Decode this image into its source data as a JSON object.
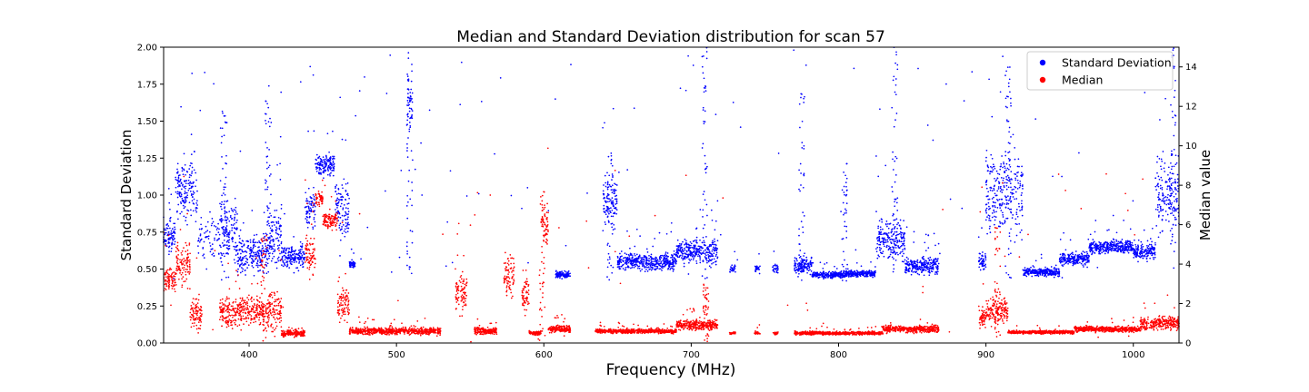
{
  "chart_data": {
    "type": "scatter",
    "title": "Median and Standard Deviation distribution for scan 57",
    "xlabel": "Frequency (MHz)",
    "ylabel_left": "Standard Deviation",
    "ylabel_right": "Median value",
    "xlim": [
      342,
      1031
    ],
    "ylim_left": [
      0,
      2.0
    ],
    "ylim_right": [
      0,
      15
    ],
    "x_ticks": [
      400,
      500,
      600,
      700,
      800,
      900,
      1000
    ],
    "y_left_ticks": [
      "0.00",
      "0.25",
      "0.50",
      "0.75",
      "1.00",
      "1.25",
      "1.50",
      "1.75",
      "2.00"
    ],
    "y_right_ticks": [
      "0",
      "2",
      "4",
      "6",
      "8",
      "10",
      "12",
      "14"
    ],
    "legend_position": "top-right",
    "grid": false,
    "series": [
      {
        "name": "Standard Deviation",
        "axis": "left",
        "color": "#0000ff",
        "segments": [
          {
            "x0": 342,
            "x1": 350,
            "base": 0.72,
            "spread": 0.15,
            "density": 1.0
          },
          {
            "x0": 350,
            "x1": 365,
            "base": 1.05,
            "spread": 0.3,
            "density": 1.0
          },
          {
            "x0": 365,
            "x1": 380,
            "base": 0.7,
            "spread": 0.25,
            "density": 0.4
          },
          {
            "x0": 380,
            "x1": 392,
            "base": 0.75,
            "spread": 0.35,
            "density": 1.0
          },
          {
            "x0": 392,
            "x1": 412,
            "base": 0.6,
            "spread": 0.18,
            "density": 1.0
          },
          {
            "x0": 412,
            "x1": 422,
            "base": 0.7,
            "spread": 0.3,
            "density": 1.0
          },
          {
            "x0": 422,
            "x1": 438,
            "base": 0.58,
            "spread": 0.12,
            "density": 1.0
          },
          {
            "x0": 438,
            "x1": 445,
            "base": 0.9,
            "spread": 0.2,
            "density": 1.0
          },
          {
            "x0": 445,
            "x1": 458,
            "base": 1.2,
            "spread": 0.1,
            "density": 1.0
          },
          {
            "x0": 458,
            "x1": 468,
            "base": 0.9,
            "spread": 0.3,
            "density": 1.0
          },
          {
            "x0": 468,
            "x1": 472,
            "base": 0.53,
            "spread": 0.04,
            "density": 1.0
          },
          {
            "x0": 507,
            "x1": 511,
            "base": 1.6,
            "spread": 0.3,
            "density": 1.0
          },
          {
            "x0": 608,
            "x1": 618,
            "base": 0.46,
            "spread": 0.03,
            "density": 1.0
          },
          {
            "x0": 640,
            "x1": 650,
            "base": 0.95,
            "spread": 0.25,
            "density": 1.0
          },
          {
            "x0": 650,
            "x1": 690,
            "base": 0.55,
            "spread": 0.08,
            "density": 1.0
          },
          {
            "x0": 690,
            "x1": 718,
            "base": 0.62,
            "spread": 0.12,
            "density": 1.0
          },
          {
            "x0": 726,
            "x1": 730,
            "base": 0.5,
            "spread": 0.04,
            "density": 0.6
          },
          {
            "x0": 743,
            "x1": 747,
            "base": 0.5,
            "spread": 0.04,
            "density": 0.6
          },
          {
            "x0": 755,
            "x1": 759,
            "base": 0.5,
            "spread": 0.04,
            "density": 0.6
          },
          {
            "x0": 770,
            "x1": 782,
            "base": 0.52,
            "spread": 0.08,
            "density": 1.0
          },
          {
            "x0": 782,
            "x1": 805,
            "base": 0.46,
            "spread": 0.03,
            "density": 1.0
          },
          {
            "x0": 805,
            "x1": 825,
            "base": 0.47,
            "spread": 0.03,
            "density": 1.0
          },
          {
            "x0": 825,
            "x1": 845,
            "base": 0.7,
            "spread": 0.2,
            "density": 1.0
          },
          {
            "x0": 845,
            "x1": 868,
            "base": 0.52,
            "spread": 0.08,
            "density": 1.0
          },
          {
            "x0": 895,
            "x1": 900,
            "base": 0.55,
            "spread": 0.1,
            "density": 1.0
          },
          {
            "x0": 900,
            "x1": 925,
            "base": 1.0,
            "spread": 0.4,
            "density": 1.0
          },
          {
            "x0": 925,
            "x1": 950,
            "base": 0.48,
            "spread": 0.04,
            "density": 1.0
          },
          {
            "x0": 950,
            "x1": 970,
            "base": 0.57,
            "spread": 0.06,
            "density": 1.0
          },
          {
            "x0": 970,
            "x1": 1000,
            "base": 0.65,
            "spread": 0.06,
            "density": 1.0
          },
          {
            "x0": 1000,
            "x1": 1015,
            "base": 0.62,
            "spread": 0.08,
            "density": 1.0
          },
          {
            "x0": 1015,
            "x1": 1031,
            "base": 1.0,
            "spread": 0.35,
            "density": 1.0
          }
        ],
        "spikes": [
          {
            "x": 383,
            "peak": 1.6
          },
          {
            "x": 413,
            "peak": 1.75
          },
          {
            "x": 509,
            "peak": 2.0
          },
          {
            "x": 645,
            "peak": 1.3
          },
          {
            "x": 709,
            "peak": 2.0
          },
          {
            "x": 775,
            "peak": 1.7
          },
          {
            "x": 804,
            "peak": 1.22
          },
          {
            "x": 838,
            "peak": 2.0
          },
          {
            "x": 915,
            "peak": 2.0
          },
          {
            "x": 1027,
            "peak": 2.0
          }
        ]
      },
      {
        "name": "Median",
        "axis": "right",
        "color": "#ff0000",
        "segments": [
          {
            "x0": 342,
            "x1": 350,
            "base": 3.2,
            "spread": 1.0,
            "density": 1.0
          },
          {
            "x0": 350,
            "x1": 360,
            "base": 4.0,
            "spread": 1.5,
            "density": 1.0
          },
          {
            "x0": 360,
            "x1": 368,
            "base": 1.5,
            "spread": 1.2,
            "density": 1.0
          },
          {
            "x0": 380,
            "x1": 392,
            "base": 1.5,
            "spread": 1.2,
            "density": 1.0
          },
          {
            "x0": 392,
            "x1": 412,
            "base": 1.6,
            "spread": 1.0,
            "density": 1.0
          },
          {
            "x0": 412,
            "x1": 422,
            "base": 1.8,
            "spread": 1.5,
            "density": 1.0
          },
          {
            "x0": 422,
            "x1": 438,
            "base": 0.5,
            "spread": 0.25,
            "density": 1.0
          },
          {
            "x0": 438,
            "x1": 445,
            "base": 4.5,
            "spread": 1.5,
            "density": 1.0
          },
          {
            "x0": 445,
            "x1": 450,
            "base": 7.3,
            "spread": 0.5,
            "density": 1.0
          },
          {
            "x0": 450,
            "x1": 460,
            "base": 6.2,
            "spread": 0.6,
            "density": 1.0
          },
          {
            "x0": 460,
            "x1": 468,
            "base": 2.0,
            "spread": 1.2,
            "density": 1.0
          },
          {
            "x0": 468,
            "x1": 500,
            "base": 0.6,
            "spread": 0.25,
            "density": 1.0
          },
          {
            "x0": 500,
            "x1": 530,
            "base": 0.6,
            "spread": 0.25,
            "density": 1.0
          },
          {
            "x0": 540,
            "x1": 548,
            "base": 2.5,
            "spread": 1.5,
            "density": 1.0
          },
          {
            "x0": 553,
            "x1": 568,
            "base": 0.6,
            "spread": 0.25,
            "density": 1.0
          },
          {
            "x0": 573,
            "x1": 580,
            "base": 3.5,
            "spread": 1.5,
            "density": 1.0
          },
          {
            "x0": 585,
            "x1": 590,
            "base": 2.5,
            "spread": 1.5,
            "density": 1.0
          },
          {
            "x0": 590,
            "x1": 598,
            "base": 0.5,
            "spread": 0.15,
            "density": 1.0
          },
          {
            "x0": 598,
            "x1": 603,
            "base": 6.0,
            "spread": 1.5,
            "density": 1.0
          },
          {
            "x0": 603,
            "x1": 618,
            "base": 0.7,
            "spread": 0.25,
            "density": 1.0
          },
          {
            "x0": 635,
            "x1": 690,
            "base": 0.6,
            "spread": 0.15,
            "density": 1.0
          },
          {
            "x0": 690,
            "x1": 718,
            "base": 0.9,
            "spread": 0.35,
            "density": 1.0
          },
          {
            "x0": 726,
            "x1": 730,
            "base": 0.5,
            "spread": 0.1,
            "density": 0.6
          },
          {
            "x0": 743,
            "x1": 747,
            "base": 0.5,
            "spread": 0.1,
            "density": 0.6
          },
          {
            "x0": 755,
            "x1": 759,
            "base": 0.5,
            "spread": 0.1,
            "density": 0.6
          },
          {
            "x0": 770,
            "x1": 830,
            "base": 0.5,
            "spread": 0.12,
            "density": 1.0
          },
          {
            "x0": 830,
            "x1": 868,
            "base": 0.7,
            "spread": 0.25,
            "density": 1.0
          },
          {
            "x0": 895,
            "x1": 900,
            "base": 1.2,
            "spread": 0.8,
            "density": 1.0
          },
          {
            "x0": 900,
            "x1": 915,
            "base": 1.6,
            "spread": 1.0,
            "density": 1.0
          },
          {
            "x0": 915,
            "x1": 960,
            "base": 0.55,
            "spread": 0.12,
            "density": 1.0
          },
          {
            "x0": 960,
            "x1": 1005,
            "base": 0.7,
            "spread": 0.2,
            "density": 1.0
          },
          {
            "x0": 1005,
            "x1": 1031,
            "base": 1.0,
            "spread": 0.5,
            "density": 1.0
          }
        ],
        "spikes": [
          {
            "x": 410,
            "peak": 5.5
          },
          {
            "x": 599,
            "peak": 8.0
          },
          {
            "x": 710,
            "peak": 3.0
          },
          {
            "x": 908,
            "peak": 6.0
          }
        ]
      }
    ]
  }
}
